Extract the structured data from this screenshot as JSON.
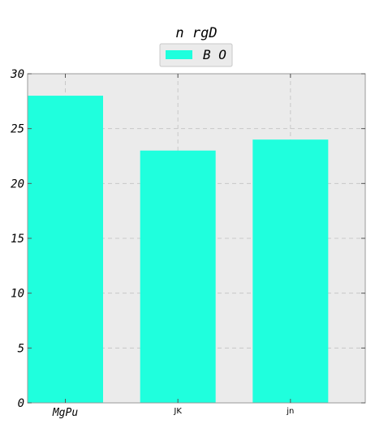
{
  "chart_data": {
    "type": "bar",
    "title": "n rgD",
    "xlabel": "",
    "ylabel": "",
    "categories": [
      "MgPu",
      "JK",
      "jn"
    ],
    "series": [
      {
        "name": "B O",
        "values": [
          28,
          23,
          24
        ]
      }
    ],
    "ylim": [
      0,
      30
    ],
    "yticks": [
      0,
      5,
      10,
      15,
      20,
      25,
      30
    ],
    "grid": true,
    "legend_position": "top-center",
    "colors": {
      "bar": "#1fffdd",
      "plot_background": "#ebebeb",
      "grid": "#c8c8c8",
      "legend_background": "#ebebeb"
    }
  }
}
